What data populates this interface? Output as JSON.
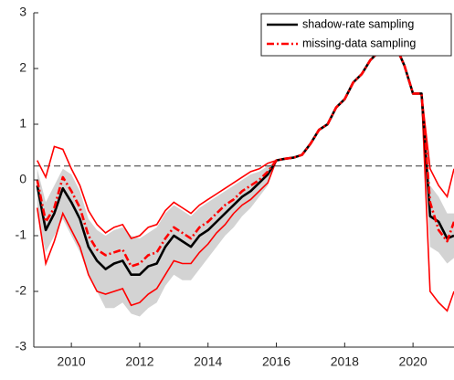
{
  "chart_data": {
    "type": "line",
    "x": [
      2009.0,
      2009.25,
      2009.5,
      2009.75,
      2010.0,
      2010.25,
      2010.5,
      2010.75,
      2011.0,
      2011.25,
      2011.5,
      2011.75,
      2012.0,
      2012.25,
      2012.5,
      2012.75,
      2013.0,
      2013.25,
      2013.5,
      2013.75,
      2014.0,
      2014.25,
      2014.5,
      2014.75,
      2015.0,
      2015.25,
      2015.5,
      2015.75,
      2016.0,
      2016.25,
      2016.5,
      2016.75,
      2017.0,
      2017.25,
      2017.5,
      2017.75,
      2018.0,
      2018.25,
      2018.5,
      2018.75,
      2019.0,
      2019.25,
      2019.5,
      2019.75,
      2020.0,
      2020.25,
      2020.5,
      2020.75,
      2021.0,
      2021.2
    ],
    "series": [
      {
        "name": "shadow-rate sampling",
        "color": "#000000",
        "dash": "solid",
        "values": [
          -0.1,
          -0.9,
          -0.6,
          -0.15,
          -0.4,
          -0.7,
          -1.2,
          -1.45,
          -1.6,
          -1.5,
          -1.45,
          -1.7,
          -1.7,
          -1.55,
          -1.5,
          -1.2,
          -1.0,
          -1.1,
          -1.2,
          -1.0,
          -0.9,
          -0.75,
          -0.6,
          -0.45,
          -0.3,
          -0.2,
          -0.05,
          0.1,
          0.35,
          0.38,
          0.4,
          0.45,
          0.65,
          0.9,
          1.0,
          1.3,
          1.45,
          1.75,
          1.9,
          2.15,
          2.3,
          2.45,
          2.4,
          2.05,
          1.55,
          1.55,
          -0.65,
          -0.75,
          -1.05,
          -1.0
        ]
      },
      {
        "name": "missing-data sampling",
        "color": "#ff0000",
        "dash": "dashdot",
        "values": [
          0.0,
          -0.75,
          -0.5,
          0.05,
          -0.2,
          -0.5,
          -1.0,
          -1.25,
          -1.35,
          -1.3,
          -1.25,
          -1.55,
          -1.5,
          -1.35,
          -1.3,
          -1.05,
          -0.85,
          -0.95,
          -1.05,
          -0.85,
          -0.75,
          -0.6,
          -0.45,
          -0.35,
          -0.2,
          -0.1,
          0.0,
          0.15,
          0.35,
          0.38,
          0.4,
          0.45,
          0.65,
          0.9,
          1.0,
          1.3,
          1.45,
          1.75,
          1.9,
          2.15,
          2.3,
          2.45,
          2.4,
          2.05,
          1.55,
          1.55,
          -0.4,
          -0.9,
          -1.1,
          -0.75
        ]
      }
    ],
    "bands": [
      {
        "style": "fill",
        "color": "#d3d3d3",
        "lower": [
          -0.6,
          -1.3,
          -1.0,
          -0.7,
          -1.0,
          -1.3,
          -1.7,
          -2.0,
          -2.3,
          -2.3,
          -2.2,
          -2.4,
          -2.45,
          -2.3,
          -2.2,
          -1.9,
          -1.7,
          -1.8,
          -1.8,
          -1.6,
          -1.4,
          -1.2,
          -1.0,
          -0.85,
          -0.65,
          -0.5,
          -0.3,
          -0.1,
          0.35,
          0.38,
          0.4,
          0.45,
          0.65,
          0.9,
          1.0,
          1.3,
          1.45,
          1.75,
          1.9,
          2.15,
          2.3,
          2.45,
          2.4,
          2.05,
          1.55,
          1.55,
          -1.2,
          -1.3,
          -1.5,
          -1.4
        ],
        "upper": [
          0.2,
          -0.4,
          -0.1,
          0.2,
          0.1,
          -0.2,
          -0.7,
          -0.9,
          -1.0,
          -0.9,
          -0.85,
          -1.0,
          -1.05,
          -0.95,
          -0.85,
          -0.6,
          -0.45,
          -0.55,
          -0.65,
          -0.5,
          -0.4,
          -0.3,
          -0.2,
          -0.1,
          0.0,
          0.1,
          0.15,
          0.25,
          0.35,
          0.38,
          0.4,
          0.45,
          0.65,
          0.9,
          1.0,
          1.3,
          1.45,
          1.75,
          1.9,
          2.15,
          2.3,
          2.45,
          2.4,
          2.05,
          1.55,
          1.55,
          -0.1,
          -0.3,
          -0.6,
          -0.6
        ]
      },
      {
        "style": "lines",
        "color": "#ff0000",
        "lower": [
          -0.5,
          -1.5,
          -1.1,
          -0.6,
          -0.9,
          -1.2,
          -1.7,
          -2.0,
          -2.05,
          -2.0,
          -1.95,
          -2.25,
          -2.2,
          -2.05,
          -1.95,
          -1.7,
          -1.45,
          -1.5,
          -1.5,
          -1.3,
          -1.15,
          -0.95,
          -0.8,
          -0.6,
          -0.45,
          -0.35,
          -0.2,
          -0.05,
          0.35,
          0.38,
          0.4,
          0.45,
          0.65,
          0.9,
          1.0,
          1.3,
          1.45,
          1.75,
          1.9,
          2.15,
          2.3,
          2.45,
          2.4,
          2.05,
          1.55,
          1.55,
          -2.0,
          -2.2,
          -2.35,
          -2.0
        ],
        "upper": [
          0.35,
          0.05,
          0.6,
          0.55,
          0.2,
          -0.1,
          -0.55,
          -0.8,
          -0.95,
          -0.85,
          -0.8,
          -1.05,
          -1.0,
          -0.85,
          -0.8,
          -0.55,
          -0.4,
          -0.5,
          -0.6,
          -0.45,
          -0.35,
          -0.25,
          -0.15,
          -0.05,
          0.05,
          0.15,
          0.2,
          0.3,
          0.35,
          0.38,
          0.4,
          0.45,
          0.65,
          0.9,
          1.0,
          1.3,
          1.45,
          1.75,
          1.9,
          2.15,
          2.3,
          2.45,
          2.4,
          2.05,
          1.55,
          1.55,
          0.2,
          -0.1,
          -0.3,
          0.2
        ]
      }
    ],
    "hline": 0.25,
    "xlim": [
      2008.9,
      2021.2
    ],
    "ylim": [
      -3,
      3
    ],
    "xticks": [
      2010,
      2012,
      2014,
      2016,
      2018,
      2020
    ],
    "yticks": [
      -3,
      -2,
      -1,
      0,
      1,
      2,
      3
    ],
    "legend_position": "upper right"
  }
}
